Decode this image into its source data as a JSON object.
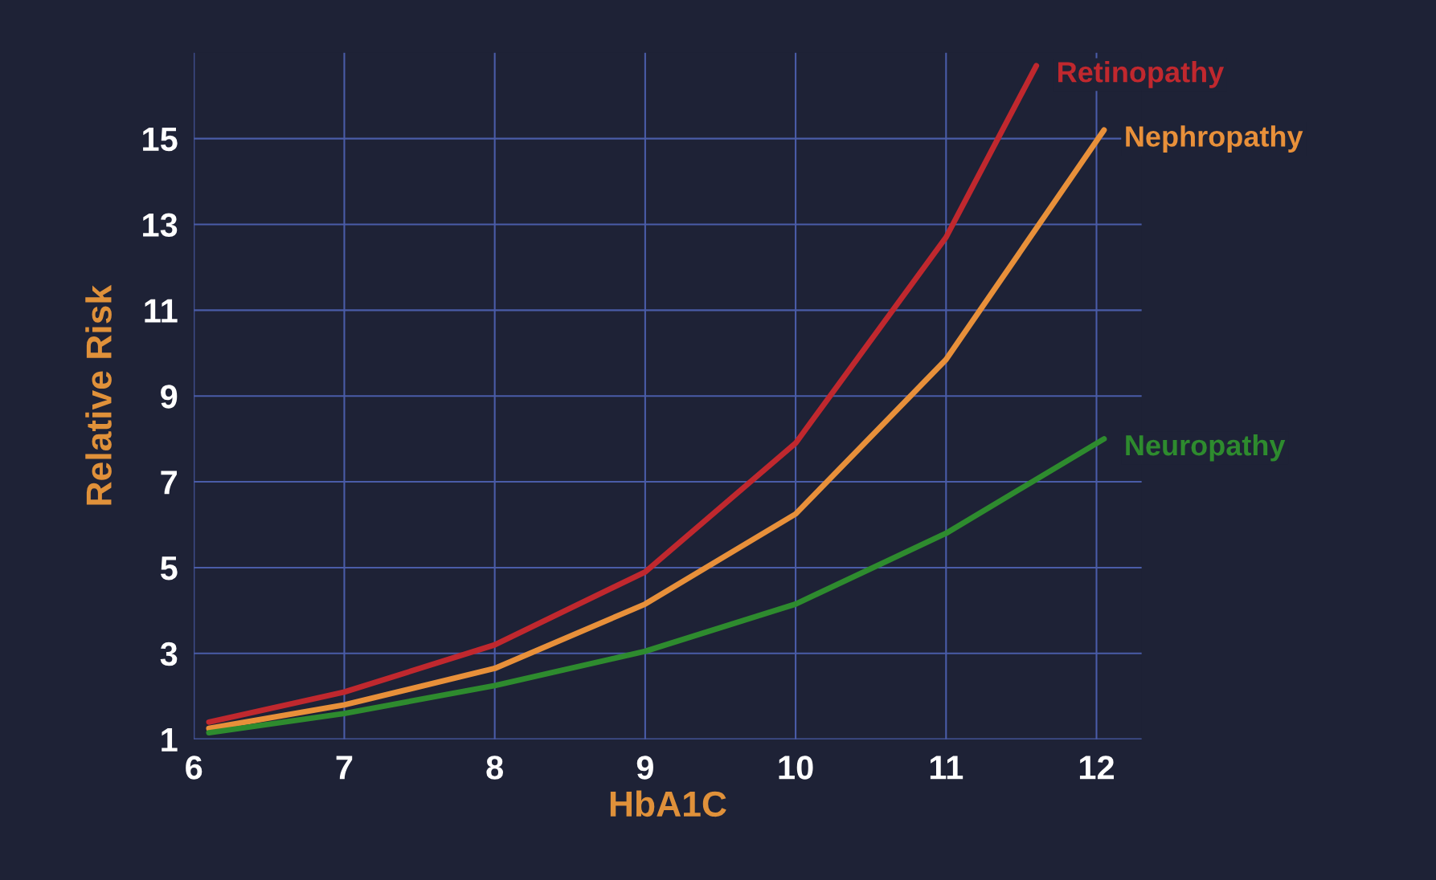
{
  "chart_data": {
    "type": "line",
    "xlabel": "HbA1C",
    "ylabel": "Relative Risk",
    "series": [
      {
        "name": "Retinopathy",
        "color": "#c0282e",
        "x": [
          6.1,
          7,
          8,
          9,
          10,
          11,
          11.6
        ],
        "values": [
          1.4,
          2.1,
          3.2,
          4.9,
          7.9,
          12.7,
          16.7
        ]
      },
      {
        "name": "Nephropathy",
        "color": "#e8903a",
        "x": [
          6.1,
          7,
          8,
          9,
          10,
          11,
          12.05
        ],
        "values": [
          1.25,
          1.8,
          2.65,
          4.15,
          6.25,
          9.85,
          15.2
        ]
      },
      {
        "name": "Neuropathy",
        "color": "#2e8b2e",
        "x": [
          6.1,
          7,
          8,
          9,
          10,
          11,
          12.05
        ],
        "values": [
          1.15,
          1.6,
          2.25,
          3.05,
          4.15,
          5.8,
          8.0
        ]
      }
    ],
    "xlim": [
      6,
      12.3
    ],
    "ylim": [
      1,
      17
    ],
    "xticks": [
      6,
      7,
      8,
      9,
      10,
      11,
      12
    ],
    "yticks": [
      1,
      3,
      5,
      7,
      9,
      11,
      13,
      15
    ],
    "grid": true,
    "legend": false,
    "marker": "none",
    "line_style": "solid"
  }
}
